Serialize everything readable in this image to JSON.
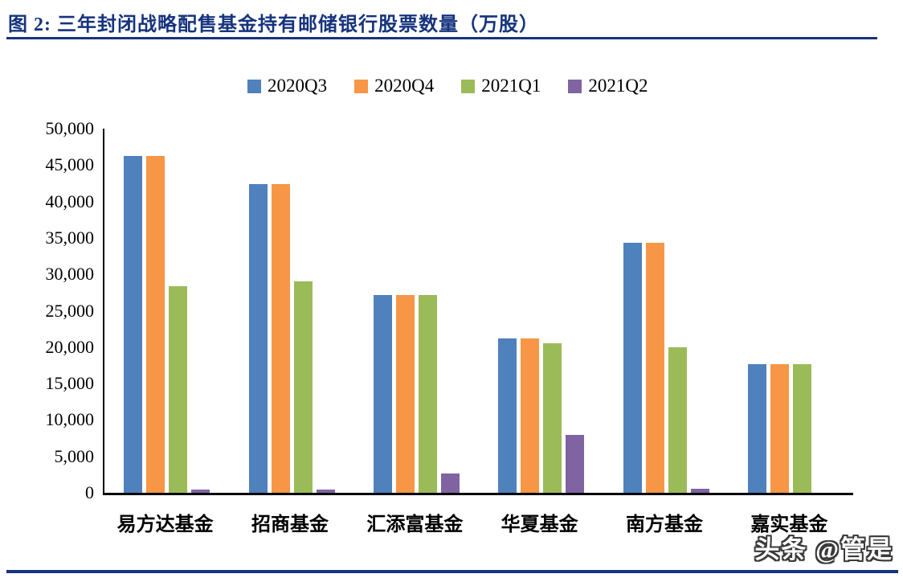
{
  "page": {
    "title": "图 2:  三年封闭战略配售基金持有邮储银行股票数量（万股）",
    "watermark": "头条 @管是"
  },
  "colors": {
    "accent_navy": "#16337E",
    "axis_black": "#000000",
    "series_blue": "#4F81BD",
    "series_orange": "#F79646",
    "series_green": "#9BBB59",
    "series_purple": "#8064A2"
  },
  "chart_data": {
    "type": "bar",
    "title": "三年封闭战略配售基金持有邮储银行股票数量（万股）",
    "categories": [
      "易方达基金",
      "招商基金",
      "汇添富基金",
      "华夏基金",
      "南方基金",
      "嘉实基金"
    ],
    "series": [
      {
        "name": "2020Q3",
        "color": "#4F81BD",
        "values": [
          46250,
          42400,
          27200,
          21200,
          34300,
          17700
        ]
      },
      {
        "name": "2020Q4",
        "color": "#F79646",
        "values": [
          46250,
          42400,
          27200,
          21200,
          34300,
          17700
        ]
      },
      {
        "name": "2021Q1",
        "color": "#9BBB59",
        "values": [
          28400,
          29000,
          27200,
          20500,
          20000,
          17700
        ]
      },
      {
        "name": "2021Q2",
        "color": "#8064A2",
        "values": [
          400,
          400,
          2700,
          8000,
          600,
          0
        ]
      }
    ],
    "xlabel": "",
    "ylabel": "",
    "ylim": [
      0,
      50000
    ],
    "ytick_interval": 5000,
    "ytick_labels": [
      "0",
      "5,000",
      "10,000",
      "15,000",
      "20,000",
      "25,000",
      "30,000",
      "35,000",
      "40,000",
      "45,000",
      "50,000"
    ],
    "legend_position": "top",
    "grid": false
  }
}
